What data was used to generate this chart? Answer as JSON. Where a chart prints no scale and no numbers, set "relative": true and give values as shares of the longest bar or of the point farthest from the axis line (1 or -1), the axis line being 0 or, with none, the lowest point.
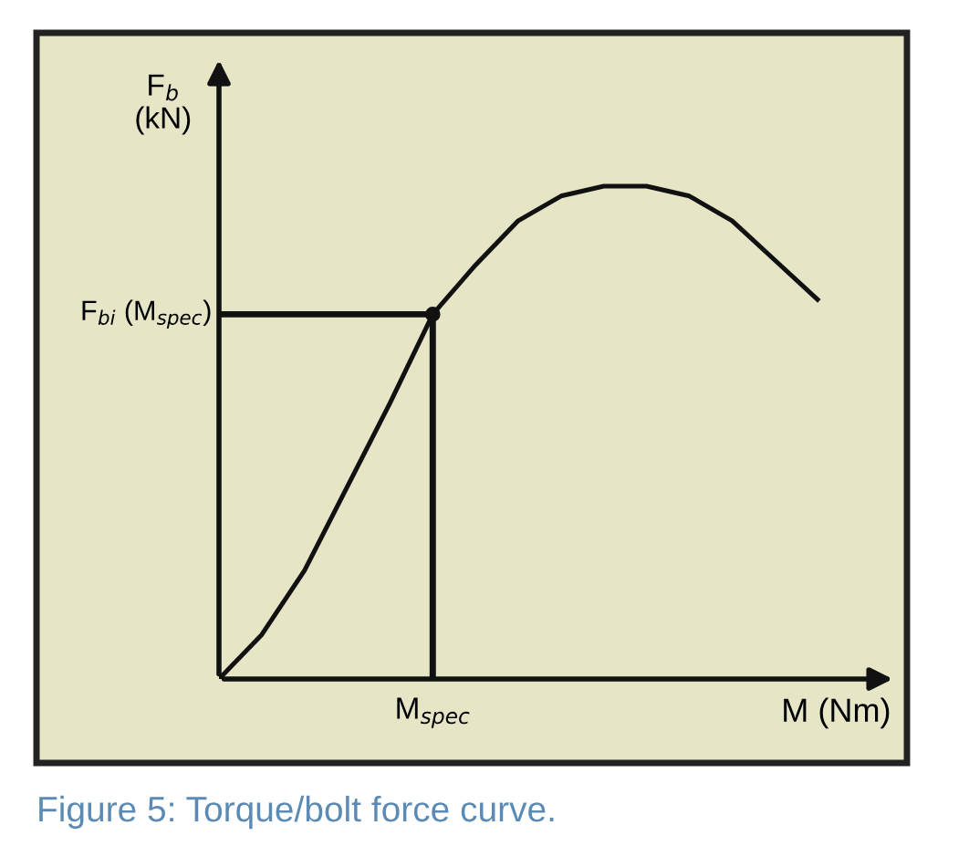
{
  "chart_data": {
    "type": "line",
    "relative": true,
    "categories": [
      null,
      null,
      null,
      null,
      null,
      null,
      null,
      null,
      null,
      null,
      null,
      null,
      null,
      null,
      null
    ],
    "series": [
      {
        "color": "#111111",
        "values": [
          0,
          0.09,
          0.22,
          0.39,
          0.56,
          0.74,
          0.84,
          0.93,
          0.98,
          1,
          1,
          0.98,
          0.93,
          0.85,
          0.77
        ]
      }
    ],
    "xlabel": "M (Nm)",
    "ylabel": "F$_{b}$\n(kN)",
    "ref_lines": [
      {
        "axis": "y",
        "value": 0.74,
        "label": "F$_{bi}$ (M$_{spec}$)",
        "color": "#111111"
      },
      {
        "axis": "x",
        "value": "M$_{spec}$",
        "color": "#111111"
      }
    ],
    "annotations": [
      "Figure 5: Torque/bolt force curve."
    ],
    "marker": "none",
    "line_style": "solid",
    "legend": false
  }
}
